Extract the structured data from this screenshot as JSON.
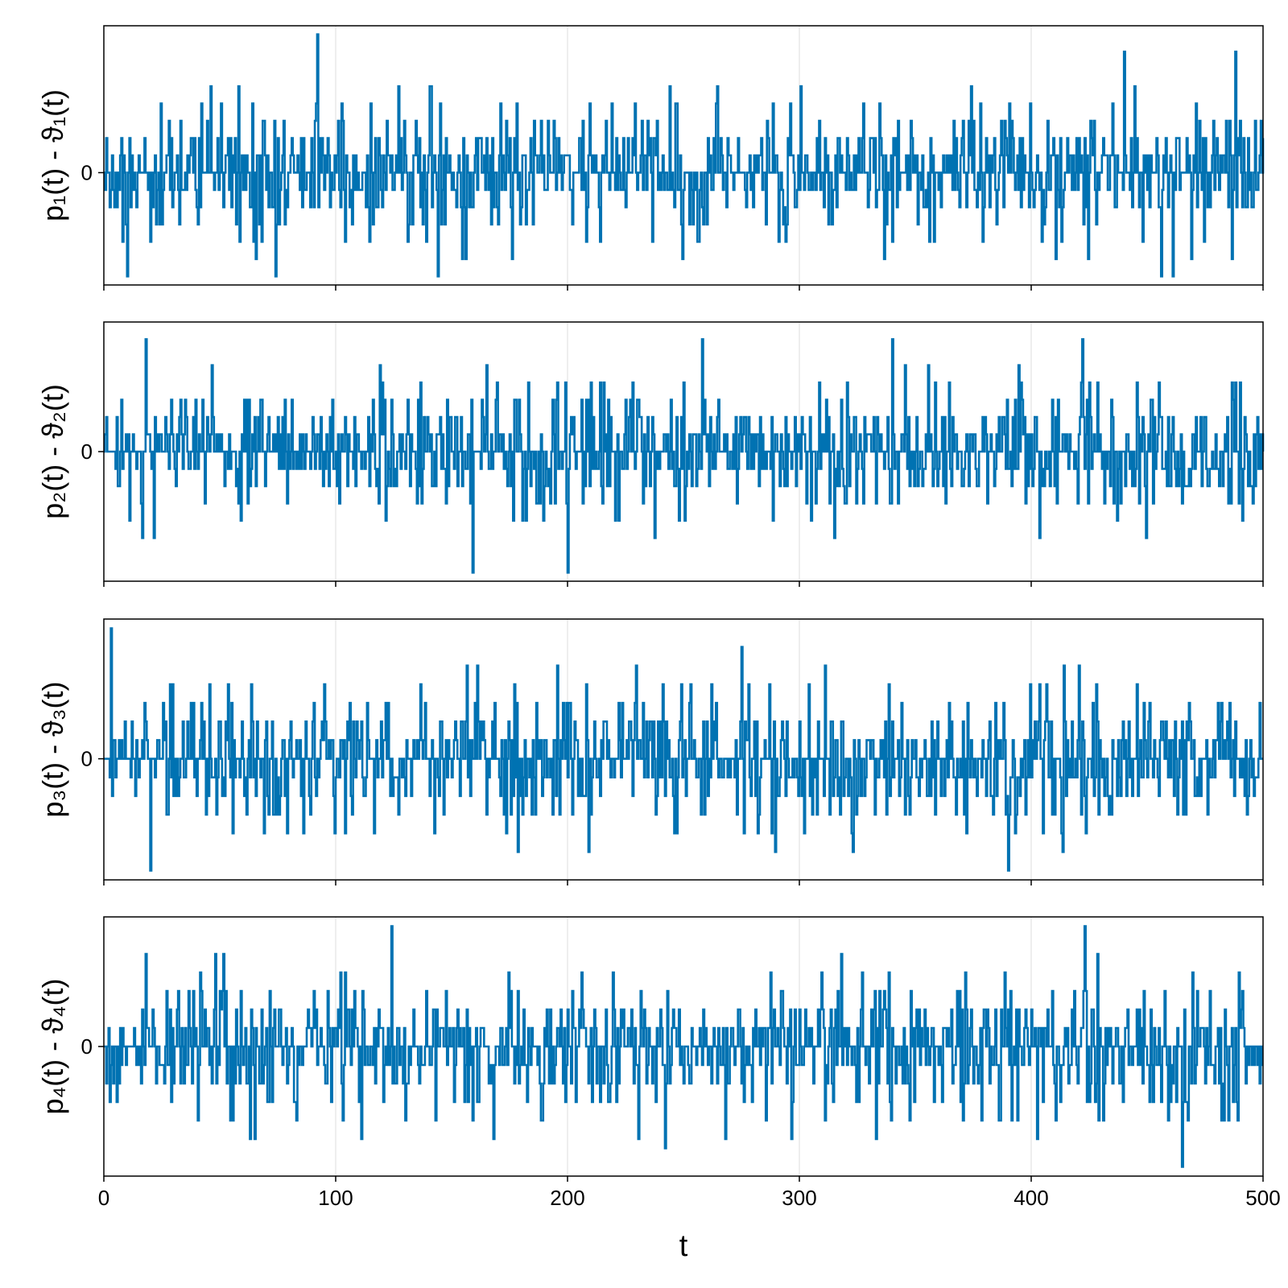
{
  "chart_data": {
    "type": "line",
    "line_color": "#0072b2",
    "grid": true,
    "shared_x": {
      "label": "t",
      "ticks": [
        0,
        100,
        200,
        300,
        400,
        500
      ],
      "tick_labels": [
        "0",
        "100",
        "200",
        "300",
        "400",
        "500"
      ],
      "xlim": [
        0,
        500
      ]
    },
    "panels": [
      {
        "ylabel": "p₁(t) - ϑ₁(t)",
        "y_ticks": [
          0
        ],
        "y_tick_labels": [
          "0"
        ],
        "ylim": [
          -6.5,
          8.5
        ],
        "seed": 11,
        "peaks": [
          [
            10,
            -6
          ],
          [
            74,
            -6
          ],
          [
            92,
            8
          ],
          [
            144,
            -6
          ],
          [
            456,
            -6
          ],
          [
            461,
            -6
          ],
          [
            488,
            7
          ],
          [
            440,
            7
          ]
        ]
      },
      {
        "ylabel": "p₂(t) - ϑ₂(t)",
        "y_ticks": [
          0
        ],
        "y_tick_labels": [
          "0"
        ],
        "ylim": [
          -7.5,
          7.5
        ],
        "seed": 23,
        "peaks": [
          [
            18,
            6.5
          ],
          [
            159,
            -7
          ],
          [
            200,
            -7
          ],
          [
            258,
            6.5
          ],
          [
            340,
            6.5
          ],
          [
            422,
            6.5
          ]
        ]
      },
      {
        "ylabel": "p₃(t) - ϑ₃(t)",
        "y_ticks": [
          0
        ],
        "y_tick_labels": [
          "0"
        ],
        "ylim": [
          -6.5,
          7.5
        ],
        "seed": 37,
        "peaks": [
          [
            3,
            7
          ],
          [
            20,
            -6
          ],
          [
            275,
            6
          ],
          [
            390,
            -6
          ]
        ]
      },
      {
        "ylabel": "p₄(t) - ϑ₄(t)",
        "y_ticks": [
          0
        ],
        "y_tick_labels": [
          "0"
        ],
        "ylim": [
          -7,
          7
        ],
        "seed": 53,
        "peaks": [
          [
            124,
            6.5
          ],
          [
            465,
            -6.5
          ],
          [
            423,
            6.5
          ],
          [
            242,
            -5.5
          ]
        ]
      }
    ]
  }
}
